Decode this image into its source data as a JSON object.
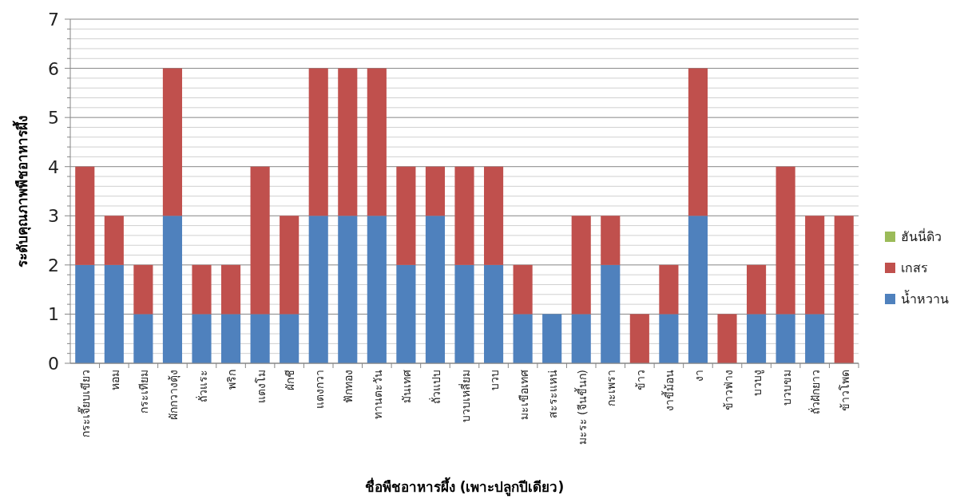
{
  "chart_data": {
    "type": "bar",
    "stacked": true,
    "xlabel": "ชื่อพืชอาหารผึ้ง (เพาะปลูกปีเดียว)",
    "ylabel": "ระดับคุณภาพพืชอาหารผึ้ง",
    "categories": [
      "กระเจี๊ยบเขียว",
      "หอม",
      "กระเทียม",
      "ผักกวางตุ้ง",
      "ถั่วแระ",
      "พริก",
      "แตงโม",
      "ผักชี",
      "แตงกวา",
      "ฟักทอง",
      "ทานตะวัน",
      "มันเทศ",
      "ถั่วแปบ",
      "บวบเหลี่ยม",
      "บวบ",
      "มะเขือเทศ",
      "สะระแหน่",
      "มะระ (จีนขี้นก)",
      "กะเพรา",
      "ข้าว",
      "งาขี้ม้อน",
      "งา",
      "ข้าวฟ่าง",
      "บวบงู",
      "บวบขม",
      "ถั่วฝักยาว",
      "ข้าวโพด"
    ],
    "series": [
      {
        "name": "น้ำหวาน",
        "color": "#4f81bd",
        "values": [
          2,
          2,
          1,
          3,
          1,
          1,
          1,
          1,
          3,
          3,
          3,
          2,
          3,
          2,
          2,
          1,
          1,
          1,
          2,
          0,
          1,
          3,
          0,
          1,
          1,
          1,
          0
        ]
      },
      {
        "name": "เกสร",
        "color": "#c0504d",
        "values": [
          2,
          1,
          1,
          3,
          1,
          1,
          3,
          2,
          3,
          3,
          3,
          2,
          1,
          2,
          2,
          1,
          0,
          2,
          1,
          1,
          1,
          3,
          1,
          1,
          3,
          2,
          3
        ]
      },
      {
        "name": "ฮันนี่ดิว",
        "color": "#9bbb59",
        "values": [
          0,
          0,
          0,
          0,
          0,
          0,
          0,
          0,
          0,
          0,
          0,
          0,
          0,
          0,
          0,
          0,
          0,
          0,
          0,
          0,
          0,
          0,
          0,
          0,
          0,
          0,
          0
        ]
      }
    ],
    "ylim": [
      0,
      7
    ],
    "yticks": [
      0,
      {
        "value": 0.2,
        "label": null
      },
      {
        "value": 0.4,
        "label": null
      },
      {
        "value": 0.6,
        "label": null
      },
      {
        "value": 0.8,
        "label": null
      },
      1,
      {
        "value": 1.2,
        "label": null
      },
      {
        "value": 1.4,
        "label": null
      },
      {
        "value": 1.6,
        "label": null
      },
      {
        "value": 1.8,
        "label": null
      },
      2,
      {
        "value": 2.2,
        "label": null
      },
      {
        "value": 2.4,
        "label": null
      },
      {
        "value": 2.6,
        "label": null
      },
      {
        "value": 2.8,
        "label": null
      },
      3,
      {
        "value": 3.2,
        "label": null
      },
      {
        "value": 3.4,
        "label": null
      },
      {
        "value": 3.6,
        "label": null
      },
      {
        "value": 3.8,
        "label": null
      },
      4,
      {
        "value": 4.2,
        "label": null
      },
      {
        "value": 4.4,
        "label": null
      },
      {
        "value": 4.6,
        "label": null
      },
      {
        "value": 4.8,
        "label": null
      },
      5,
      {
        "value": 5.2,
        "label": null
      },
      {
        "value": 5.4,
        "label": null
      },
      {
        "value": 5.6,
        "label": null
      },
      {
        "value": 5.8,
        "label": null
      },
      6,
      {
        "value": 6.2,
        "label": null
      },
      {
        "value": 6.4,
        "label": null
      },
      {
        "value": 6.6,
        "label": null
      },
      {
        "value": 6.8,
        "label": null
      },
      7
    ],
    "grid": "y",
    "legend": "right"
  }
}
